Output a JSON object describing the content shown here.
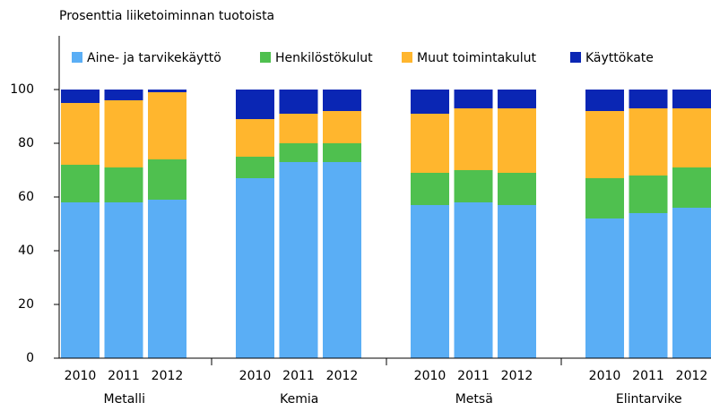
{
  "chart_data": {
    "type": "stacked-bar",
    "title": "Prosenttia liiketoiminnan tuotoista",
    "groups": [
      "Metalli",
      "Kemia",
      "Metsä",
      "Elintarvike"
    ],
    "categories": [
      2010,
      2011,
      2012,
      2010,
      2011,
      2012,
      2010,
      2011,
      2012,
      2010,
      2011,
      2012
    ],
    "series": [
      {
        "name": "Aine- ja tarvikekäyttö",
        "color": "#5aaef5",
        "values": [
          58,
          58,
          59,
          67,
          73,
          73,
          57,
          58,
          57,
          52,
          54,
          56
        ]
      },
      {
        "name": "Henkilöstökulut",
        "color": "#4fc04f",
        "values": [
          14,
          13,
          15,
          8,
          7,
          7,
          12,
          12,
          12,
          15,
          14,
          15
        ]
      },
      {
        "name": "Muut toimintakulut",
        "color": "#ffb62e",
        "values": [
          23,
          25,
          25,
          14,
          11,
          12,
          22,
          23,
          24,
          25,
          25,
          22
        ]
      },
      {
        "name": "Käyttökate",
        "color": "#0a26b4",
        "values": [
          5,
          4,
          1,
          11,
          9,
          8,
          9,
          7,
          7,
          8,
          7,
          7
        ]
      }
    ],
    "ylim": [
      0,
      120
    ],
    "yticks": [
      0,
      20,
      40,
      60,
      80,
      100
    ],
    "grid": false,
    "legend": "top"
  }
}
